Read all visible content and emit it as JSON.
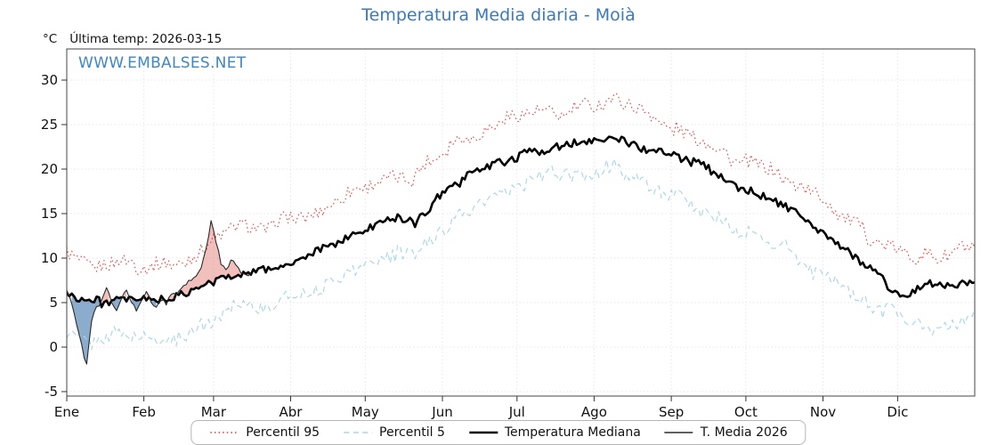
{
  "title": "Temperatura Media diaria - Moià",
  "header": {
    "unit": "°C",
    "last_temp": "Última temp: 2026-03-15"
  },
  "watermark": "WWW.EMBALSES.NET",
  "colors": {
    "title": "#3a7ab8",
    "watermark": "#3f87c5",
    "axis": "#333333",
    "grid": "#e4e7ee",
    "frame": "#444444"
  },
  "legend": {
    "position": "bottom-center",
    "items": [
      {
        "label": "Percentil 95"
      },
      {
        "label": "Percentil 5"
      },
      {
        "label": "Temperatura Mediana"
      },
      {
        "label": "T. Media 2026"
      }
    ]
  },
  "chart_data": {
    "type": "line",
    "title": "Temperatura Media diaria - Moià",
    "ylabel": "°C",
    "ylim": [
      -5.5,
      33.5
    ],
    "y_ticks": [
      -5,
      0,
      5,
      10,
      15,
      20,
      25,
      30
    ],
    "x_tick_labels": [
      "Ene",
      "Feb",
      "Mar",
      "Abr",
      "May",
      "Jun",
      "Jul",
      "Ago",
      "Sep",
      "Oct",
      "Nov",
      "Dic"
    ],
    "x_tick_days": [
      0,
      31,
      59,
      90,
      120,
      151,
      181,
      212,
      243,
      273,
      304,
      334
    ],
    "x_range_days": [
      0,
      365
    ],
    "grid": true,
    "legend_position": "bottom",
    "fills": {
      "compare": "T. Media 2026 vs Temperatura Mediana",
      "above_color": "#e0726a",
      "above_opacity": 0.45,
      "below_color": "#3f74ae",
      "below_opacity": 0.6
    },
    "series": [
      {
        "name": "Percentil 95",
        "color": "#e8413c",
        "dash": "dotted",
        "width": 1.1,
        "jitter": 0.8,
        "points": [
          [
            0,
            11
          ],
          [
            10,
            9
          ],
          [
            20,
            9.5
          ],
          [
            30,
            9
          ],
          [
            40,
            9.5
          ],
          [
            50,
            10
          ],
          [
            60,
            12
          ],
          [
            70,
            14
          ],
          [
            80,
            13.5
          ],
          [
            90,
            14.5
          ],
          [
            100,
            15
          ],
          [
            110,
            16.5
          ],
          [
            120,
            18
          ],
          [
            130,
            19.5
          ],
          [
            140,
            19
          ],
          [
            150,
            22
          ],
          [
            160,
            23.5
          ],
          [
            170,
            25
          ],
          [
            180,
            26
          ],
          [
            190,
            26.5
          ],
          [
            200,
            26
          ],
          [
            210,
            27
          ],
          [
            220,
            27.5
          ],
          [
            230,
            26.5
          ],
          [
            240,
            25
          ],
          [
            250,
            23.5
          ],
          [
            260,
            22.5
          ],
          [
            270,
            21
          ],
          [
            280,
            20
          ],
          [
            290,
            19
          ],
          [
            300,
            17
          ],
          [
            310,
            15
          ],
          [
            320,
            13
          ],
          [
            330,
            11.5
          ],
          [
            340,
            10.5
          ],
          [
            350,
            10
          ],
          [
            360,
            11
          ],
          [
            365,
            10.5
          ]
        ]
      },
      {
        "name": "Percentil 5",
        "color": "#a6d5e6",
        "dash": "dashed",
        "width": 1.1,
        "jitter": 0.8,
        "points": [
          [
            0,
            2
          ],
          [
            10,
            0.5
          ],
          [
            20,
            1.5
          ],
          [
            30,
            1
          ],
          [
            40,
            0.5
          ],
          [
            50,
            2
          ],
          [
            60,
            3.5
          ],
          [
            70,
            5
          ],
          [
            80,
            4.5
          ],
          [
            90,
            5.5
          ],
          [
            100,
            6.5
          ],
          [
            110,
            8
          ],
          [
            120,
            9
          ],
          [
            130,
            10.5
          ],
          [
            140,
            10
          ],
          [
            150,
            13
          ],
          [
            160,
            15
          ],
          [
            170,
            16.5
          ],
          [
            180,
            18
          ],
          [
            190,
            19
          ],
          [
            200,
            19.5
          ],
          [
            210,
            19.5
          ],
          [
            220,
            20
          ],
          [
            230,
            19
          ],
          [
            240,
            17.5
          ],
          [
            250,
            16
          ],
          [
            260,
            14.5
          ],
          [
            270,
            13
          ],
          [
            280,
            12
          ],
          [
            290,
            11
          ],
          [
            300,
            8.5
          ],
          [
            310,
            7
          ],
          [
            320,
            5
          ],
          [
            330,
            4
          ],
          [
            340,
            3
          ],
          [
            350,
            2
          ],
          [
            360,
            3
          ],
          [
            365,
            3.5
          ]
        ]
      },
      {
        "name": "Temperatura Mediana",
        "color": "#000000",
        "dash": "solid",
        "width": 2.6,
        "jitter": 0.45,
        "points": [
          [
            0,
            6
          ],
          [
            10,
            5
          ],
          [
            20,
            5.5
          ],
          [
            30,
            5.5
          ],
          [
            40,
            5
          ],
          [
            50,
            6
          ],
          [
            60,
            7.5
          ],
          [
            70,
            8.5
          ],
          [
            80,
            9
          ],
          [
            90,
            9.5
          ],
          [
            100,
            10.5
          ],
          [
            110,
            12
          ],
          [
            120,
            13
          ],
          [
            130,
            14.5
          ],
          [
            140,
            14
          ],
          [
            150,
            17
          ],
          [
            160,
            19
          ],
          [
            170,
            20.5
          ],
          [
            180,
            21.5
          ],
          [
            190,
            22
          ],
          [
            200,
            22.5
          ],
          [
            210,
            23
          ],
          [
            220,
            23.5
          ],
          [
            230,
            22.5
          ],
          [
            240,
            22
          ],
          [
            250,
            21
          ],
          [
            260,
            19.5
          ],
          [
            270,
            18
          ],
          [
            280,
            17
          ],
          [
            290,
            15.5
          ],
          [
            300,
            13.5
          ],
          [
            310,
            11.5
          ],
          [
            320,
            9.5
          ],
          [
            330,
            7
          ],
          [
            337,
            5.5
          ],
          [
            345,
            7
          ],
          [
            355,
            7
          ],
          [
            365,
            7.5
          ]
        ]
      },
      {
        "name": "T. Media 2026",
        "color": "#2b2b2b",
        "dash": "solid",
        "width": 1.1,
        "jitter": 0.25,
        "range": [
          0,
          74
        ],
        "points": [
          [
            0,
            6.5
          ],
          [
            2,
            5
          ],
          [
            4,
            2.5
          ],
          [
            6,
            0
          ],
          [
            8,
            -2
          ],
          [
            10,
            3
          ],
          [
            12,
            4.5
          ],
          [
            14,
            5
          ],
          [
            16,
            6.5
          ],
          [
            18,
            5
          ],
          [
            20,
            4
          ],
          [
            22,
            5.5
          ],
          [
            24,
            6.5
          ],
          [
            26,
            5
          ],
          [
            28,
            4
          ],
          [
            30,
            5
          ],
          [
            32,
            6
          ],
          [
            34,
            5
          ],
          [
            36,
            4.5
          ],
          [
            38,
            5.5
          ],
          [
            40,
            5
          ],
          [
            42,
            6
          ],
          [
            44,
            5.5
          ],
          [
            46,
            6.5
          ],
          [
            48,
            7
          ],
          [
            50,
            7.5
          ],
          [
            52,
            8
          ],
          [
            54,
            9
          ],
          [
            56,
            11
          ],
          [
            58,
            14
          ],
          [
            60,
            12
          ],
          [
            62,
            9.5
          ],
          [
            64,
            8.5
          ],
          [
            66,
            10
          ],
          [
            68,
            9.5
          ],
          [
            70,
            8.5
          ],
          [
            72,
            8
          ],
          [
            74,
            8.5
          ]
        ]
      }
    ]
  }
}
